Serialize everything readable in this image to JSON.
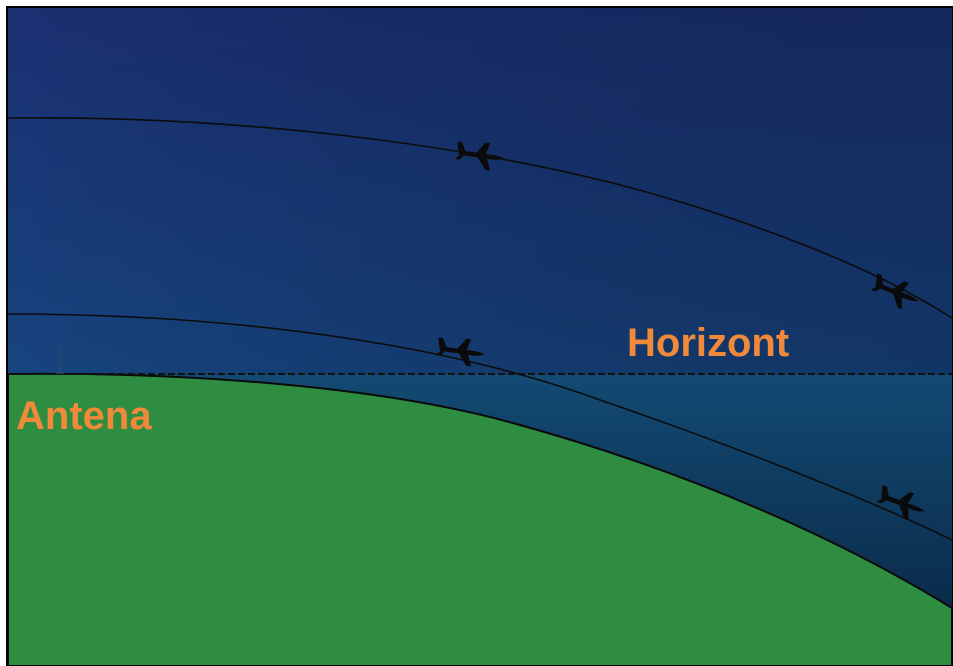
{
  "labels": {
    "horizon": "Horizont",
    "antenna": "Antena"
  },
  "colors": {
    "sky_top": "#1a2a6e",
    "sky_mid": "#17407e",
    "sky_horizon": "#1a5a8a",
    "shadow": "#0b2a4a",
    "ground": "#2e8b43",
    "label": "#f08a3a",
    "line": "#111111",
    "frame": "#000000"
  },
  "icons": {
    "aircraft": "airplane-icon",
    "antenna": "antenna-icon"
  }
}
